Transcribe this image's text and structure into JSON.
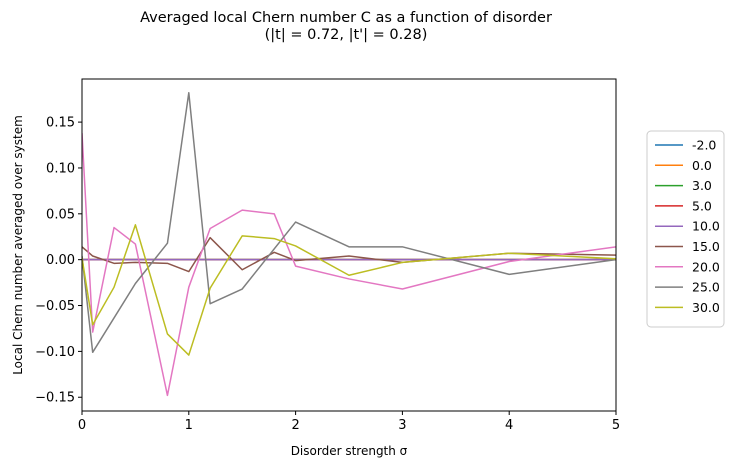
{
  "chart_data": {
    "type": "line",
    "title": "Averaged local Chern number C as a function of disorder",
    "subtitle": "(|t| = 0.72, |t'| = 0.28)",
    "xlabel": "Disorder strength σ",
    "ylabel": "Local Chern number averaged over system",
    "xlim": [
      0,
      5
    ],
    "ylim": [
      -0.165,
      0.197
    ],
    "xticks": [
      0,
      1,
      2,
      3,
      4,
      5
    ],
    "xtick_labels": [
      "0",
      "1",
      "2",
      "3",
      "4",
      "5"
    ],
    "yticks": [
      -0.15,
      -0.1,
      -0.05,
      0.0,
      0.05,
      0.1,
      0.15
    ],
    "ytick_labels": [
      "−0.15",
      "−0.10",
      "−0.05",
      "0.00",
      "0.05",
      "0.10",
      "0.15"
    ],
    "legend_position": "right, outside plot",
    "series": [
      {
        "name": "-2.0",
        "color": "#1f77b4",
        "x": [
          0,
          0.1,
          0.3,
          0.5,
          0.8,
          1.0,
          1.2,
          1.5,
          1.8,
          2.0,
          2.5,
          3.0,
          3.5,
          4.0,
          4.5,
          5.0
        ],
        "y": [
          0,
          0,
          0,
          0,
          0,
          0,
          0,
          0,
          0,
          0,
          0,
          0,
          0,
          0,
          0,
          0
        ]
      },
      {
        "name": "0.0",
        "color": "#ff7f0e",
        "x": [
          0,
          0.1,
          0.3,
          0.5,
          0.8,
          1.0,
          1.2,
          1.5,
          1.8,
          2.0,
          2.5,
          3.0,
          3.5,
          4.0,
          4.5,
          5.0
        ],
        "y": [
          0,
          0,
          0,
          0,
          0,
          0,
          0,
          0,
          0,
          0,
          0,
          0,
          0,
          0,
          0,
          0
        ]
      },
      {
        "name": "3.0",
        "color": "#2ca02c",
        "x": [
          0,
          0.1,
          0.3,
          0.5,
          0.8,
          1.0,
          1.2,
          1.5,
          1.8,
          2.0,
          2.5,
          3.0,
          3.5,
          4.0,
          4.5,
          5.0
        ],
        "y": [
          0,
          0,
          0,
          0,
          0,
          0,
          0,
          0,
          0,
          0,
          0,
          0,
          0,
          0,
          0,
          0
        ]
      },
      {
        "name": "5.0",
        "color": "#d62728",
        "x": [
          0,
          0.1,
          0.3,
          0.5,
          0.8,
          1.0,
          1.2,
          1.5,
          1.8,
          2.0,
          2.5,
          3.0,
          3.5,
          4.0,
          4.5,
          5.0
        ],
        "y": [
          0,
          0,
          0,
          0,
          0,
          0,
          0,
          0,
          0,
          0,
          0,
          0,
          0,
          0,
          0,
          0
        ]
      },
      {
        "name": "10.0",
        "color": "#9467bd",
        "x": [
          0,
          0.1,
          0.3,
          0.5,
          0.8,
          1.0,
          1.2,
          1.5,
          1.8,
          2.0,
          2.5,
          3.0,
          3.5,
          4.0,
          4.5,
          5.0
        ],
        "y": [
          0,
          0,
          0,
          0,
          0,
          0,
          0,
          0,
          0,
          0,
          0,
          0,
          0,
          0,
          0,
          0
        ]
      },
      {
        "name": "15.0",
        "color": "#8c564b",
        "x": [
          0,
          0.1,
          0.3,
          0.5,
          0.8,
          1.0,
          1.2,
          1.5,
          1.8,
          2.0,
          2.5,
          3.0,
          4.0,
          5.0
        ],
        "y": [
          0.014,
          0.004,
          -0.004,
          -0.003,
          -0.004,
          -0.013,
          0.024,
          -0.011,
          0.008,
          -0.001,
          0.004,
          -0.003,
          0.007,
          0.005
        ]
      },
      {
        "name": "20.0",
        "color": "#e377c2",
        "x": [
          0,
          0.1,
          0.3,
          0.5,
          0.8,
          1.0,
          1.2,
          1.5,
          1.8,
          2.0,
          2.5,
          3.0,
          4.0,
          5.0
        ],
        "y": [
          0.138,
          -0.079,
          0.035,
          0.017,
          -0.148,
          -0.03,
          0.034,
          0.054,
          0.05,
          -0.007,
          -0.021,
          -0.032,
          -0.002,
          0.014
        ]
      },
      {
        "name": "25.0",
        "color": "#7f7f7f",
        "x": [
          0,
          0.1,
          0.5,
          0.8,
          1.0,
          1.2,
          1.5,
          2.0,
          2.5,
          3.0,
          4.0,
          5.0
        ],
        "y": [
          0.004,
          -0.101,
          -0.026,
          0.018,
          0.182,
          -0.048,
          -0.032,
          0.041,
          0.014,
          0.014,
          -0.016,
          0.0
        ]
      },
      {
        "name": "30.0",
        "color": "#bcbd22",
        "x": [
          0,
          0.1,
          0.3,
          0.5,
          0.8,
          1.0,
          1.2,
          1.5,
          1.8,
          2.0,
          2.5,
          3.0,
          4.0,
          5.0
        ],
        "y": [
          0.002,
          -0.071,
          -0.03,
          0.038,
          -0.081,
          -0.104,
          -0.031,
          0.026,
          0.023,
          0.015,
          -0.017,
          -0.003,
          0.007,
          0.001
        ]
      }
    ]
  }
}
